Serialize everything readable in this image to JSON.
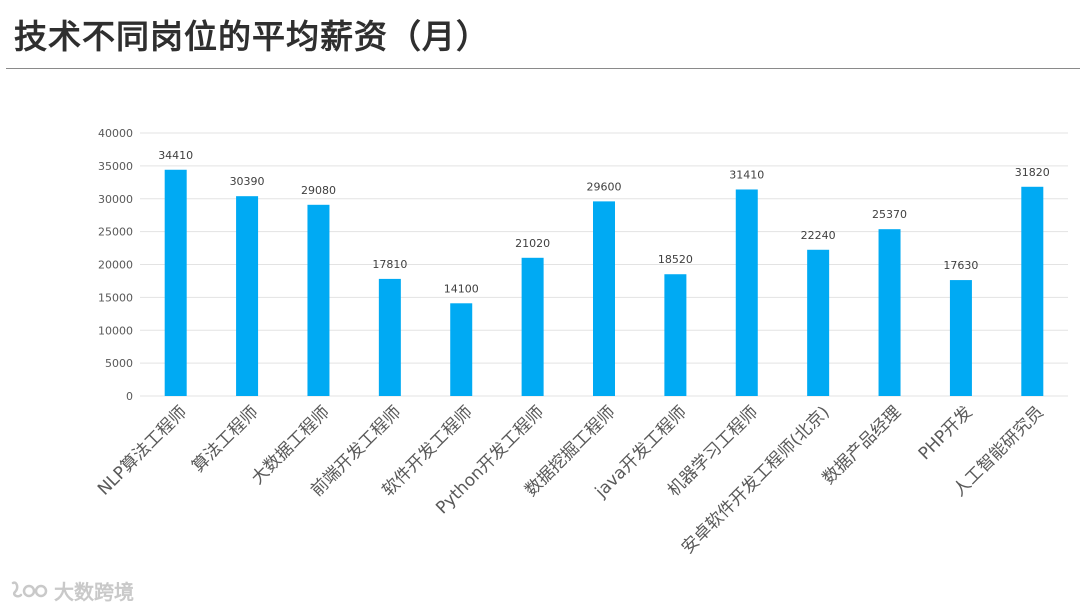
{
  "slide": {
    "title": "技术不同岗位的平均薪资（月）"
  },
  "watermark": {
    "text": "大数跨境"
  },
  "colors": {
    "bar": "#00aaf3",
    "grid": "#e3e3e3",
    "axis_text": "#595959"
  },
  "chart_data": {
    "type": "bar",
    "title": "",
    "xlabel": "",
    "ylabel": "",
    "ylim": [
      0,
      40000
    ],
    "yticks": [
      0,
      5000,
      10000,
      15000,
      20000,
      25000,
      30000,
      35000,
      40000
    ],
    "grid": true,
    "legend": "none",
    "categories": [
      "NLP算法工程师",
      "算法工程师",
      "大数据工程师",
      "前端开发工程师",
      "软件开发工程师",
      "Python开发工程师",
      "数据挖掘工程师",
      "java开发工程师",
      "机器学习工程师",
      "安卓软件开发工程师(北京)",
      "数据产品经理",
      "PHP开发",
      "人工智能研究员"
    ],
    "values": [
      34410,
      30390,
      29080,
      17810,
      14100,
      21020,
      29600,
      18520,
      31410,
      22240,
      25370,
      17630,
      31820
    ]
  }
}
